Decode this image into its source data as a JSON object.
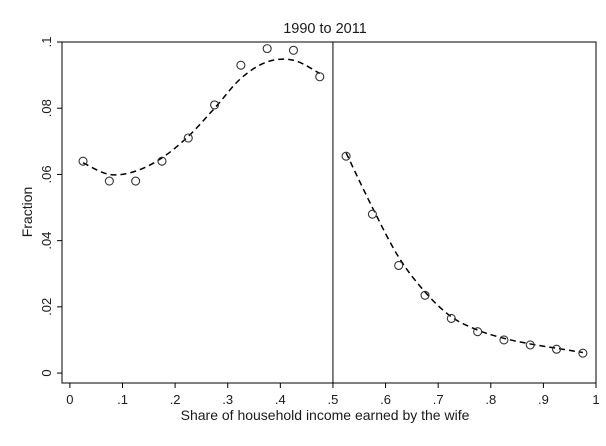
{
  "chart_data": {
    "type": "scatter",
    "title": "1990 to 2011",
    "xlabel": "Share of household income earned by the wife",
    "ylabel": "Fraction",
    "xlim": [
      -0.015,
      1.0
    ],
    "ylim": [
      -0.003,
      0.1
    ],
    "xticks": [
      0,
      0.1,
      0.2,
      0.3,
      0.4,
      0.5,
      0.6,
      0.7,
      0.8,
      0.9,
      1
    ],
    "xtick_labels": [
      "0",
      ".1",
      ".2",
      ".3",
      ".4",
      ".5",
      ".6",
      ".7",
      ".8",
      ".9",
      "1"
    ],
    "yticks": [
      0,
      0.02,
      0.04,
      0.06,
      0.08,
      0.1
    ],
    "ytick_labels": [
      "0",
      ".02",
      ".04",
      ".06",
      ".08",
      ".1"
    ],
    "grid": false,
    "legend": "none",
    "vertical_line": 0.5,
    "series": [
      {
        "kind": "points",
        "marker": "hollow-circle",
        "x": [
          0.025,
          0.075,
          0.125,
          0.175,
          0.225,
          0.275,
          0.325,
          0.375,
          0.425,
          0.475,
          0.525,
          0.575,
          0.625,
          0.675,
          0.725,
          0.775,
          0.825,
          0.875,
          0.925,
          0.975
        ],
        "y": [
          0.064,
          0.058,
          0.058,
          0.064,
          0.071,
          0.081,
          0.093,
          0.098,
          0.0975,
          0.0895,
          0.0655,
          0.048,
          0.0325,
          0.0235,
          0.0165,
          0.0125,
          0.01,
          0.0085,
          0.0072,
          0.006
        ]
      },
      {
        "kind": "fit-line",
        "style": "dashed",
        "x": [
          0.025,
          0.075,
          0.125,
          0.175,
          0.225,
          0.275,
          0.325,
          0.375,
          0.425,
          0.475
        ],
        "y": [
          0.0635,
          0.06,
          0.061,
          0.065,
          0.0715,
          0.08,
          0.089,
          0.094,
          0.0945,
          0.0905
        ]
      },
      {
        "kind": "fit-line",
        "style": "dashed",
        "x": [
          0.525,
          0.575,
          0.625,
          0.675,
          0.725,
          0.775,
          0.825,
          0.875,
          0.925,
          0.975
        ],
        "y": [
          0.0665,
          0.05,
          0.035,
          0.0245,
          0.017,
          0.013,
          0.0105,
          0.0088,
          0.0075,
          0.0062
        ]
      }
    ]
  }
}
